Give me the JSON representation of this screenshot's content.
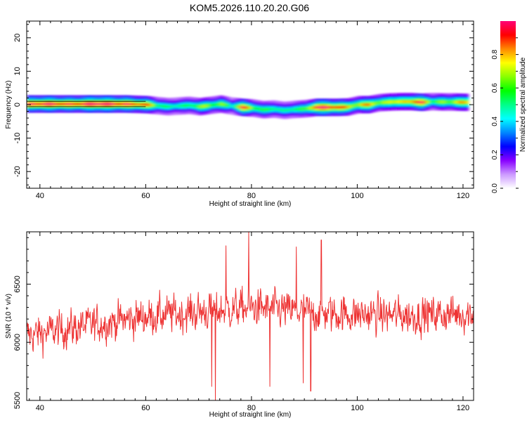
{
  "figure": {
    "title": "KOM5.2026.110.20.20.G06"
  },
  "chart_data": [
    {
      "type": "heatmap",
      "title": "KOM5.2026.110.20.20.G06",
      "xlabel": "Height of straight line (km)",
      "ylabel": "Frequency (Hz)",
      "xlim": [
        37.5,
        122
      ],
      "ylim": [
        -25,
        25
      ],
      "xticks": [
        40,
        60,
        80,
        100,
        120
      ],
      "yticks": [
        20,
        10,
        0,
        -10,
        -20
      ],
      "colorbar": {
        "label": "Normalized spectral amplitude",
        "range": [
          0,
          1
        ],
        "ticks": [
          0.0,
          0.2,
          0.4,
          0.6,
          0.8
        ],
        "colors": [
          "#ffffff",
          "#cc99ff",
          "#8800ff",
          "#0000ff",
          "#0088ff",
          "#00ffff",
          "#00ff88",
          "#00ff00",
          "#88ff00",
          "#ffff00",
          "#ff8800",
          "#ff0000",
          "#ff0077"
        ]
      },
      "ridge": {
        "x": [
          37.5,
          42,
          50,
          56,
          60,
          62,
          64,
          66,
          68,
          70,
          72,
          74,
          76,
          78,
          80,
          82,
          84,
          86,
          88,
          90,
          92,
          94,
          96,
          98,
          100,
          102,
          104,
          106,
          108,
          110,
          112,
          114,
          116,
          118,
          120
        ],
        "freq": [
          0.2,
          0.2,
          0.2,
          0.2,
          0.0,
          -0.3,
          -0.6,
          -0.4,
          -0.2,
          -0.6,
          -0.2,
          0.2,
          -0.4,
          -0.8,
          -1.0,
          -1.5,
          -1.3,
          -1.7,
          -1.4,
          -1.2,
          -0.8,
          -0.8,
          -0.8,
          -0.7,
          0.0,
          0.0,
          0.6,
          0.8,
          0.9,
          0.9,
          0.7,
          0.9,
          0.8,
          0.8,
          0.7
        ],
        "amp": [
          0.95,
          0.95,
          1.0,
          1.0,
          0.8,
          0.55,
          0.5,
          0.6,
          0.5,
          0.65,
          0.55,
          0.7,
          0.5,
          0.95,
          0.6,
          0.5,
          0.6,
          0.5,
          0.6,
          0.5,
          0.95,
          1.0,
          0.95,
          0.8,
          0.6,
          0.85,
          0.6,
          0.85,
          0.7,
          0.8,
          0.9,
          0.6,
          0.7,
          0.7,
          0.75
        ]
      }
    },
    {
      "type": "line",
      "xlabel": "Height of straight line (km)",
      "ylabel": "SNR (10 * v/v)",
      "xlim": [
        37.5,
        122
      ],
      "ylim": [
        5500,
        6950
      ],
      "xticks": [
        40,
        60,
        80,
        100,
        120
      ],
      "yticks": [
        5500,
        6000,
        6500
      ],
      "color": "#ee3333",
      "n_points": 1100,
      "baseline": {
        "x": [
          37.5,
          50,
          60,
          70,
          80,
          90,
          100,
          110,
          122
        ],
        "y": [
          6060,
          6150,
          6220,
          6260,
          6300,
          6260,
          6240,
          6230,
          6250
        ]
      },
      "extremes": [
        {
          "x": 73.2,
          "y": 5500
        },
        {
          "x": 79.5,
          "y": 6950
        },
        {
          "x": 91.2,
          "y": 5580
        },
        {
          "x": 93.2,
          "y": 6880
        },
        {
          "x": 72.5,
          "y": 5620
        },
        {
          "x": 75.2,
          "y": 6830
        },
        {
          "x": 83.5,
          "y": 5620
        },
        {
          "x": 89.8,
          "y": 5650
        },
        {
          "x": 88.5,
          "y": 6820
        }
      ]
    }
  ]
}
